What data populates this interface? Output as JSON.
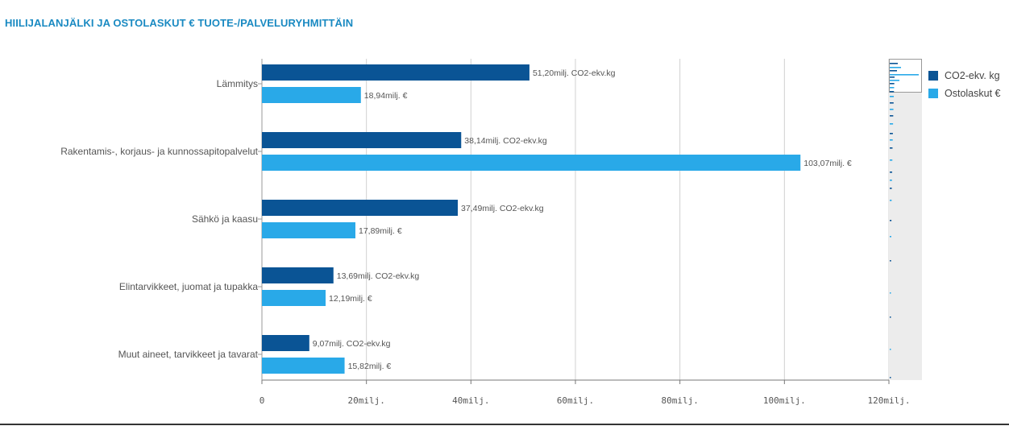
{
  "title": "HIILIJALANJÄLKI JA OSTOLASKUT € TUOTE-/PALVELURYHMITTÄIN",
  "legend": [
    {
      "label": "CO2-ekv. kg",
      "color": "#0a5495"
    },
    {
      "label": "Ostolaskut €",
      "color": "#29a9e8"
    }
  ],
  "chart_data": {
    "type": "bar",
    "orientation": "horizontal",
    "categories": [
      "Lämmitys",
      "Rakentamis-, korjaus- ja kunnossapitopalvelut",
      "Sähkö ja kaasu",
      "Elintarvikkeet, juomat ja tupakka",
      "Muut aineet, tarvikkeet ja tavarat"
    ],
    "series": [
      {
        "name": "CO2-ekv. kg",
        "color": "#0a5495",
        "values": [
          51.2,
          38.14,
          37.49,
          13.69,
          9.07
        ],
        "labels": [
          "51,20milj. CO2-ekv.kg",
          "38,14milj. CO2-ekv.kg",
          "37,49milj. CO2-ekv.kg",
          "13,69milj. CO2-ekv.kg",
          "9,07milj. CO2-ekv.kg"
        ]
      },
      {
        "name": "Ostolaskut €",
        "color": "#29a9e8",
        "values": [
          18.94,
          103.07,
          17.89,
          12.19,
          15.82
        ],
        "labels": [
          "18,94milj. €",
          "103,07milj. €",
          "17,89milj. €",
          "12,19milj. €",
          "15,82milj. €"
        ]
      }
    ],
    "xlim": [
      0,
      120
    ],
    "xticks": [
      0,
      20,
      40,
      60,
      80,
      100,
      120
    ],
    "xtick_labels": [
      "0",
      "20milj.",
      "40milj.",
      "60milj.",
      "80milj.",
      "100milj.",
      "120milj."
    ],
    "grid": true,
    "legend_position": "right"
  }
}
